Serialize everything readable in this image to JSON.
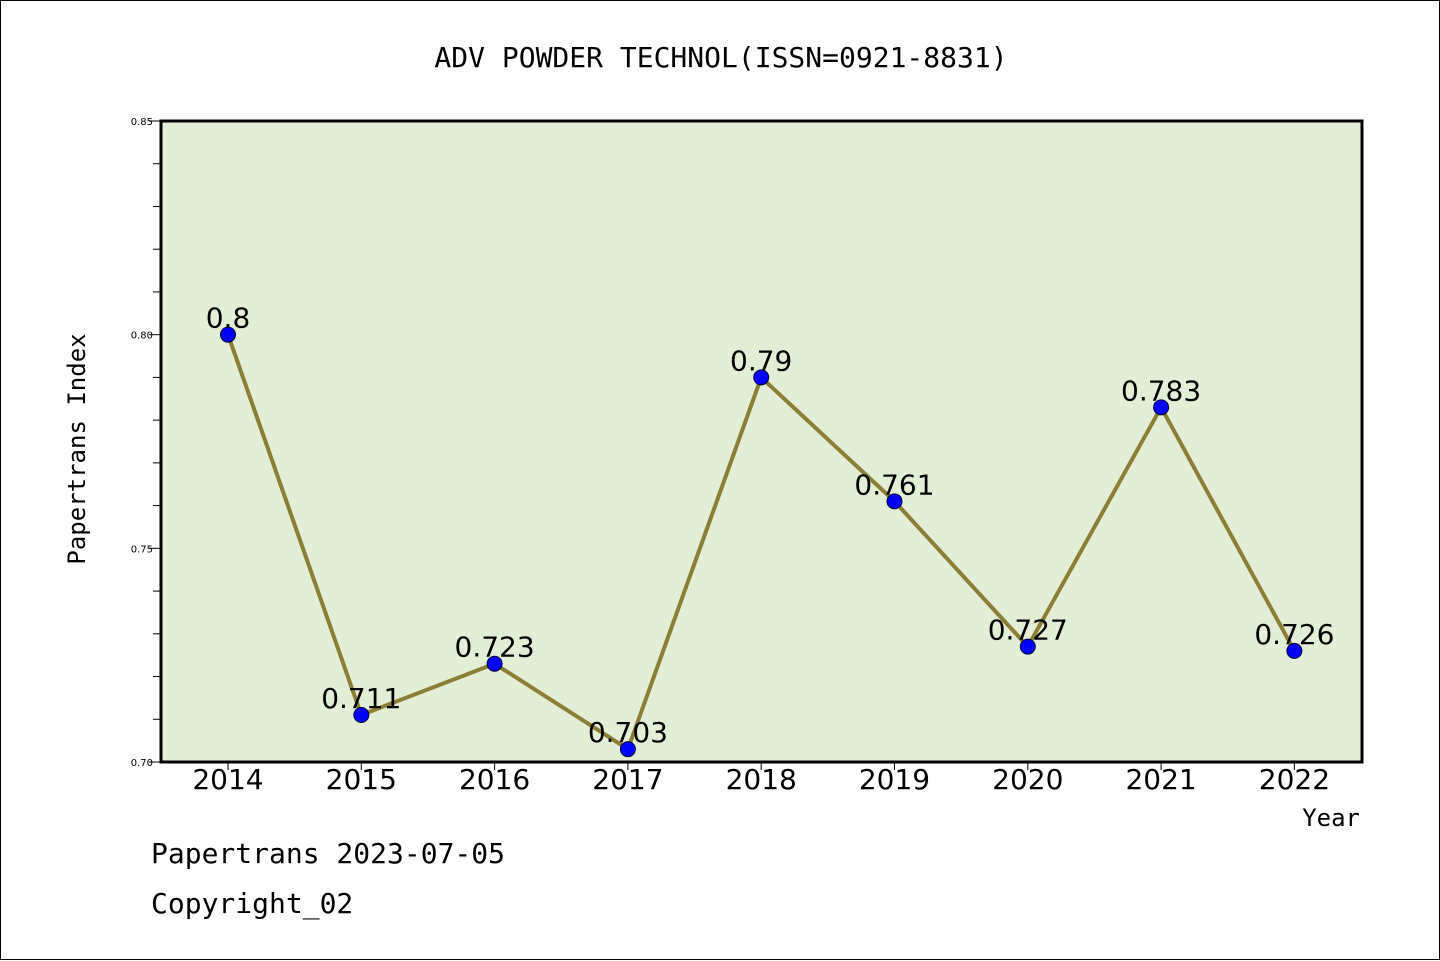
{
  "chart_data": {
    "type": "line",
    "title": "ADV POWDER TECHNOL(ISSN=0921-8831)",
    "xlabel": "Year",
    "ylabel": "Papertrans Index",
    "categories": [
      "2014",
      "2015",
      "2016",
      "2017",
      "2018",
      "2019",
      "2020",
      "2021",
      "2022"
    ],
    "series": [
      {
        "values": [
          0.8,
          0.711,
          0.723,
          0.703,
          0.79,
          0.761,
          0.727,
          0.783,
          0.726
        ],
        "labels": [
          "0.8",
          "0.711",
          "0.723",
          "0.703",
          "0.79",
          "0.761",
          "0.727",
          "0.783",
          "0.726"
        ]
      }
    ],
    "ylim": [
      0.7,
      0.85
    ],
    "yticks": [
      "0.70",
      "0.75",
      "0.80",
      "0.85"
    ],
    "grid": false,
    "colors": {
      "plot_background": "#e2efd6",
      "line": "#8c7f35",
      "marker": "#0000ff"
    }
  },
  "footer": {
    "date_line": "Papertrans 2023-07-05",
    "copyright": "Copyright_02"
  }
}
